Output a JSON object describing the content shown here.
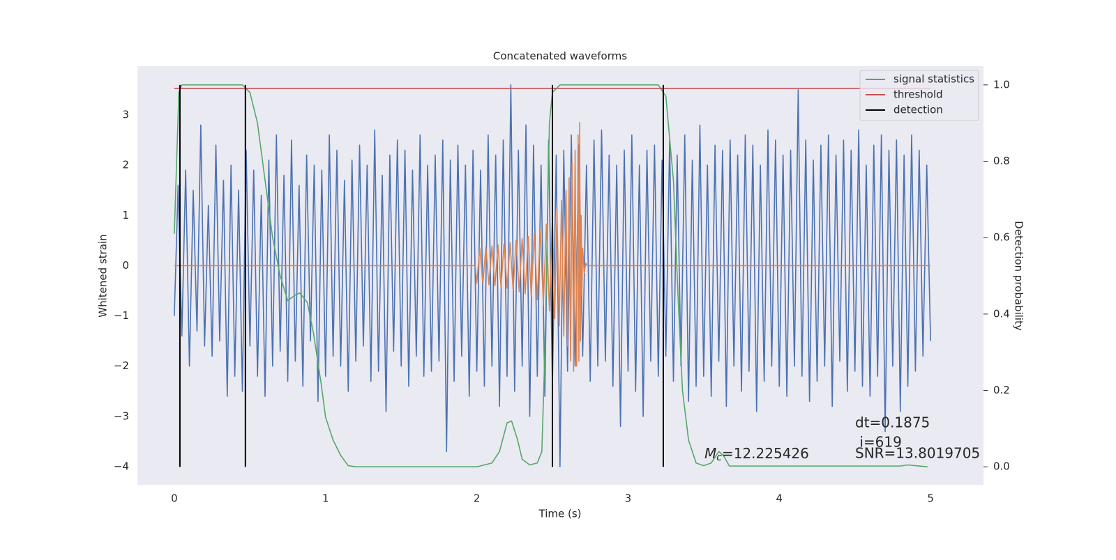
{
  "chart_data": {
    "type": "line",
    "title": "Concatenated waveforms",
    "x_label": "Time (s)",
    "y_label": "Whitened strain",
    "y2_label": "Detection probability",
    "xlim": [
      -0.244,
      5.35
    ],
    "xticks": [
      0,
      1,
      2,
      3,
      4,
      5
    ],
    "ylim": [
      -4.36,
      3.97
    ],
    "yticks": [
      {
        "value": -4,
        "label": "−4"
      },
      {
        "value": -3,
        "label": "−3"
      },
      {
        "value": -2,
        "label": "−2"
      },
      {
        "value": -1,
        "label": "−1"
      },
      0,
      1,
      2,
      3
    ],
    "y2lim": [
      -0.047,
      1.049
    ],
    "y2ticks": [
      {
        "value": 0,
        "label": "0.0"
      },
      0.2,
      0.4,
      0.6,
      0.8,
      {
        "value": 1,
        "label": "1.0"
      }
    ],
    "grid": true,
    "legend": "upper right",
    "series": [
      {
        "color": "#4c72b0",
        "x": [
          0,
          0.025,
          0.05,
          0.075,
          0.1,
          0.125,
          0.15,
          0.175,
          0.2,
          0.225,
          0.25,
          0.275,
          0.3,
          0.325,
          0.35,
          0.375,
          0.4,
          0.425,
          0.45,
          0.475,
          0.5,
          0.525,
          0.55,
          0.575,
          0.6,
          0.625,
          0.65,
          0.675,
          0.7,
          0.725,
          0.75,
          0.775,
          0.8,
          0.825,
          0.85,
          0.875,
          0.9,
          0.925,
          0.95,
          0.975,
          1,
          1.025,
          1.05,
          1.075,
          1.1,
          1.125,
          1.15,
          1.175,
          1.2,
          1.225,
          1.25,
          1.275,
          1.3,
          1.325,
          1.35,
          1.375,
          1.4,
          1.425,
          1.45,
          1.475,
          1.5,
          1.525,
          1.55,
          1.575,
          1.6,
          1.625,
          1.65,
          1.675,
          1.7,
          1.725,
          1.75,
          1.775,
          1.8,
          1.825,
          1.85,
          1.875,
          1.9,
          1.925,
          1.95,
          1.975,
          2,
          2.025,
          2.05,
          2.075,
          2.1,
          2.125,
          2.15,
          2.175,
          2.2,
          2.225,
          2.25,
          2.275,
          2.3,
          2.325,
          2.35,
          2.375,
          2.4,
          2.425,
          2.45,
          2.475,
          2.5,
          2.525,
          2.55,
          2.575,
          2.6,
          2.625,
          2.65,
          2.675,
          2.7,
          2.725,
          2.75,
          2.775,
          2.8,
          2.825,
          2.85,
          2.875,
          2.9,
          2.925,
          2.95,
          2.975,
          3,
          3.025,
          3.05,
          3.075,
          3.1,
          3.125,
          3.15,
          3.175,
          3.2,
          3.225,
          3.25,
          3.275,
          3.3,
          3.325,
          3.35,
          3.375,
          3.4,
          3.425,
          3.45,
          3.475,
          3.5,
          3.525,
          3.55,
          3.575,
          3.6,
          3.625,
          3.65,
          3.675,
          3.7,
          3.725,
          3.75,
          3.775,
          3.8,
          3.825,
          3.85,
          3.875,
          3.9,
          3.925,
          3.95,
          3.975,
          4,
          4.025,
          4.05,
          4.075,
          4.1,
          4.125,
          4.15,
          4.175,
          4.2,
          4.225,
          4.25,
          4.275,
          4.3,
          4.325,
          4.35,
          4.375,
          4.4,
          4.425,
          4.45,
          4.475,
          4.5,
          4.525,
          4.55,
          4.575,
          4.6,
          4.625,
          4.65,
          4.675,
          4.7,
          4.725,
          4.75,
          4.775,
          4.8,
          4.825,
          4.85,
          4.875,
          4.9,
          4.925,
          4.95,
          4.975,
          5
        ],
        "values": [
          -1.0,
          1.6,
          -1.4,
          1.9,
          -2.0,
          1.5,
          -1.3,
          2.8,
          -1.6,
          1.2,
          -1.8,
          2.4,
          -1.5,
          1.7,
          -2.6,
          2.0,
          -2.2,
          1.5,
          -2.5,
          2.3,
          -1.6,
          1.9,
          -2.2,
          1.4,
          -2.6,
          2.1,
          -2.0,
          2.6,
          -1.7,
          1.8,
          -2.3,
          2.5,
          -1.9,
          1.6,
          -2.4,
          2.2,
          -1.5,
          2.0,
          -2.7,
          1.9,
          -2.2,
          2.6,
          -1.8,
          2.3,
          -2.0,
          1.7,
          -2.5,
          2.1,
          -1.9,
          2.4,
          -1.6,
          2.0,
          -2.3,
          2.7,
          -2.1,
          1.8,
          -2.9,
          2.2,
          -1.7,
          2.5,
          -2.0,
          2.3,
          -2.4,
          1.9,
          -1.8,
          2.6,
          -2.2,
          2.0,
          -2.1,
          2.2,
          -1.9,
          2.5,
          -3.7,
          2.1,
          -2.3,
          2.4,
          -1.8,
          2.0,
          -2.6,
          2.3,
          -2.1,
          1.9,
          -2.4,
          2.6,
          -2.0,
          2.2,
          -2.8,
          2.5,
          -2.2,
          3.6,
          -2.5,
          2.3,
          -2.0,
          2.8,
          -3.0,
          2.4,
          -2.2,
          2.0,
          -2.6,
          2.5,
          -2.4,
          2.2,
          -4.0,
          2.3,
          -2.1,
          2.6,
          -2.0,
          2.4,
          -1.8,
          2.0,
          -2.3,
          2.5,
          -2.0,
          2.7,
          -1.9,
          2.2,
          -2.4,
          2.0,
          -3.2,
          2.3,
          -2.1,
          2.6,
          -2.5,
          2.0,
          -3.0,
          2.3,
          -1.9,
          2.4,
          -2.2,
          2.1,
          -1.8,
          2.5,
          -2.3,
          2.2,
          -2.0,
          2.6,
          -2.7,
          2.1,
          -2.4,
          2.8,
          -2.2,
          2.0,
          -2.6,
          2.4,
          -1.9,
          2.3,
          -2.8,
          2.5,
          -2.0,
          2.2,
          -2.5,
          2.6,
          -2.1,
          2.4,
          -2.9,
          2.0,
          -2.3,
          2.7,
          -2.0,
          2.5,
          -2.4,
          2.2,
          -2.6,
          2.3,
          -2.0,
          3.5,
          -2.2,
          2.5,
          -2.7,
          2.1,
          -2.3,
          2.4,
          -2.0,
          2.6,
          -2.8,
          2.2,
          -1.9,
          2.5,
          -2.5,
          2.3,
          -2.1,
          2.7,
          -2.4,
          2.0,
          -2.6,
          2.4,
          -2.2,
          2.6,
          -3.3,
          2.3,
          -2.0,
          2.5,
          -2.9,
          2.2,
          -2.4,
          2.6,
          -2.1,
          2.3,
          -1.8,
          2.0,
          -1.5
        ]
      },
      {
        "color": "#dd8452",
        "x": [
          0,
          1.99,
          2.0,
          2.02,
          2.04,
          2.06,
          2.08,
          2.1,
          2.12,
          2.14,
          2.16,
          2.18,
          2.2,
          2.22,
          2.24,
          2.26,
          2.28,
          2.3,
          2.32,
          2.34,
          2.36,
          2.38,
          2.4,
          2.42,
          2.44,
          2.46,
          2.48,
          2.5,
          2.515,
          2.53,
          2.545,
          2.56,
          2.575,
          2.59,
          2.6,
          2.61,
          2.62,
          2.63,
          2.64,
          2.65,
          2.66,
          2.67,
          2.675,
          2.68,
          2.685,
          2.69,
          2.695,
          2.7,
          2.71,
          2.72,
          2.73,
          5
        ],
        "values": [
          0,
          0,
          -0.35,
          0.35,
          -0.36,
          0.37,
          -0.38,
          0.39,
          -0.4,
          0.41,
          -0.42,
          0.43,
          -0.45,
          0.46,
          -0.48,
          0.5,
          -0.52,
          0.54,
          -0.56,
          0.58,
          -0.61,
          0.64,
          -0.68,
          0.72,
          -0.77,
          0.83,
          -0.9,
          0.98,
          -1.05,
          1.12,
          -1.2,
          1.3,
          -1.4,
          1.5,
          -1.6,
          1.75,
          -1.9,
          2.05,
          -2.1,
          2.3,
          -2.0,
          2.6,
          -1.9,
          2.85,
          -1.5,
          1.0,
          -0.6,
          0.35,
          -0.15,
          0.05,
          0,
          0
        ]
      },
      {
        "name": "signal statistics",
        "color": "#55a868",
        "axis": "y2",
        "x": [
          0,
          0.03,
          0.05,
          0.45,
          0.5,
          0.55,
          0.6,
          0.65,
          0.7,
          0.75,
          0.8,
          0.83,
          0.88,
          0.92,
          0.97,
          1.0,
          1.05,
          1.1,
          1.15,
          1.2,
          2.0,
          2.1,
          2.15,
          2.2,
          2.23,
          2.27,
          2.3,
          2.35,
          2.4,
          2.43,
          2.45,
          2.48,
          2.5,
          2.55,
          3.2,
          3.25,
          3.3,
          3.33,
          3.36,
          3.4,
          3.45,
          3.5,
          3.55,
          3.6,
          3.63,
          3.67,
          4.8,
          4.85,
          4.9,
          4.98
        ],
        "values": [
          0.61,
          0.98,
          1.0,
          1.0,
          0.98,
          0.9,
          0.75,
          0.6,
          0.5,
          0.435,
          0.45,
          0.455,
          0.43,
          0.35,
          0.22,
          0.13,
          0.07,
          0.03,
          0.003,
          0,
          0,
          0.01,
          0.04,
          0.115,
          0.12,
          0.07,
          0.02,
          0.005,
          0.01,
          0.04,
          0.3,
          0.9,
          0.98,
          1.0,
          1.0,
          0.97,
          0.75,
          0.45,
          0.2,
          0.07,
          0.01,
          0.003,
          0.01,
          0.04,
          0.03,
          0.002,
          0.002,
          0.005,
          0.003,
          0
        ]
      },
      {
        "name": "threshold",
        "color": "#c44e52",
        "axis": "y2",
        "x": [
          0,
          5
        ],
        "values": [
          0.991,
          0.991
        ]
      }
    ],
    "detection": {
      "name": "detection",
      "color": "#000000",
      "x": [
        0.037,
        0.47,
        2.5,
        3.233
      ],
      "ymin": 0,
      "ymax": 1
    },
    "annotations": {
      "dt": "dt=0.1875",
      "i": " i=619",
      "snr": "SNR=13.8019705",
      "mc_symbol": "M",
      "mc_subscript": "c",
      "mc_value": "=12.225426"
    }
  }
}
